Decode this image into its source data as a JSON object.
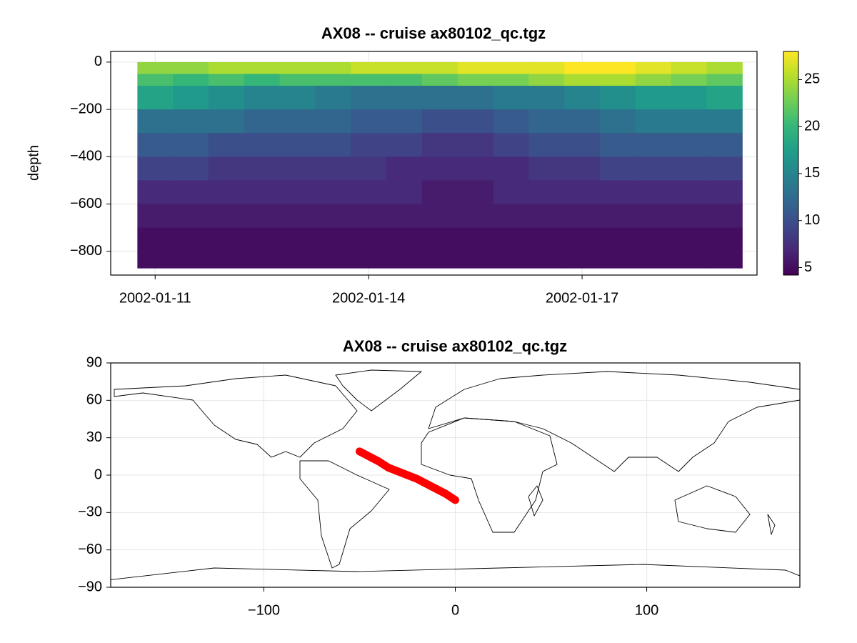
{
  "chart_data": [
    {
      "type": "heatmap",
      "title": "AX08 -- cruise ax80102_qc.tgz",
      "ylabel": "depth",
      "colormap": "viridis",
      "grid": true,
      "x": [
        "2002-01-10T18:00",
        "2002-01-11T06:00",
        "2002-01-11T18:00",
        "2002-01-12T06:00",
        "2002-01-12T18:00",
        "2002-01-13T06:00",
        "2002-01-13T18:00",
        "2002-01-14T06:00",
        "2002-01-14T18:00",
        "2002-01-15T06:00",
        "2002-01-15T18:00",
        "2002-01-16T06:00",
        "2002-01-16T18:00",
        "2002-01-17T06:00",
        "2002-01-17T18:00",
        "2002-01-18T06:00",
        "2002-01-18T18:00"
      ],
      "depth_bins": [
        0,
        -50,
        -100,
        -200,
        -300,
        -400,
        -500,
        -600,
        -700,
        -870
      ],
      "values": [
        [
          24,
          21,
          18,
          13,
          11,
          9,
          7,
          6,
          5
        ],
        [
          24,
          20,
          17,
          13,
          11,
          9,
          7,
          6,
          5
        ],
        [
          25,
          21,
          16,
          13,
          10,
          8,
          7,
          6,
          5
        ],
        [
          25,
          20,
          15,
          12,
          10,
          8,
          7,
          6,
          5
        ],
        [
          25,
          21,
          15,
          12,
          10,
          8,
          7,
          6,
          5
        ],
        [
          25,
          21,
          14,
          12,
          10,
          8,
          7,
          6,
          5
        ],
        [
          26,
          21,
          13,
          11,
          9,
          8,
          7,
          6,
          5
        ],
        [
          26,
          21,
          13,
          11,
          9,
          7,
          7,
          6,
          5
        ],
        [
          26,
          22,
          13,
          10,
          8,
          7,
          6,
          6,
          5
        ],
        [
          27,
          23,
          13,
          10,
          8,
          7,
          6,
          6,
          5
        ],
        [
          27,
          23,
          14,
          11,
          9,
          7,
          7,
          6,
          5
        ],
        [
          27,
          24,
          14,
          12,
          10,
          8,
          7,
          6,
          5
        ],
        [
          28,
          25,
          15,
          12,
          10,
          8,
          7,
          6,
          5
        ],
        [
          28,
          25,
          16,
          13,
          11,
          9,
          7,
          6,
          5
        ],
        [
          27,
          24,
          17,
          14,
          11,
          9,
          7,
          6,
          5
        ],
        [
          26,
          23,
          17,
          14,
          11,
          9,
          7,
          6,
          5
        ],
        [
          25,
          22,
          18,
          14,
          11,
          9,
          7,
          6,
          5
        ]
      ],
      "xlim": [
        "2002-01-10T09:00",
        "2002-01-19T11:00"
      ],
      "xticks": [
        "2002-01-11",
        "2002-01-14",
        "2002-01-17"
      ],
      "ylim": [
        -900,
        45
      ],
      "yticks": [
        0,
        {
          "value": -200,
          "label": "−200"
        },
        {
          "value": -400,
          "label": "−400"
        },
        {
          "value": -600,
          "label": "−600"
        },
        {
          "value": -800,
          "label": "−800"
        }
      ],
      "clim": [
        4.2,
        28
      ],
      "cticks": [
        5,
        10,
        15,
        20,
        25
      ]
    },
    {
      "type": "line",
      "title": "AX08 -- cruise ax80102_qc.tgz",
      "color": "#ff0000",
      "grid": true,
      "x": [
        -50,
        -45,
        -40,
        -35,
        -30,
        -25,
        -20,
        -15,
        -10,
        -5,
        0
      ],
      "y": [
        19,
        15,
        11,
        6,
        3,
        0,
        -3,
        -7,
        -11,
        -15,
        -20
      ],
      "xlim": [
        -180,
        180
      ],
      "xticks": [
        {
          "value": -100,
          "label": "−100"
        },
        0,
        100
      ],
      "ylim": [
        -90,
        90
      ],
      "yticks": [
        {
          "value": -90,
          "label": "−90"
        },
        {
          "value": -60,
          "label": "−60"
        },
        {
          "value": -30,
          "label": "−30"
        },
        0,
        30,
        60,
        90
      ]
    }
  ]
}
